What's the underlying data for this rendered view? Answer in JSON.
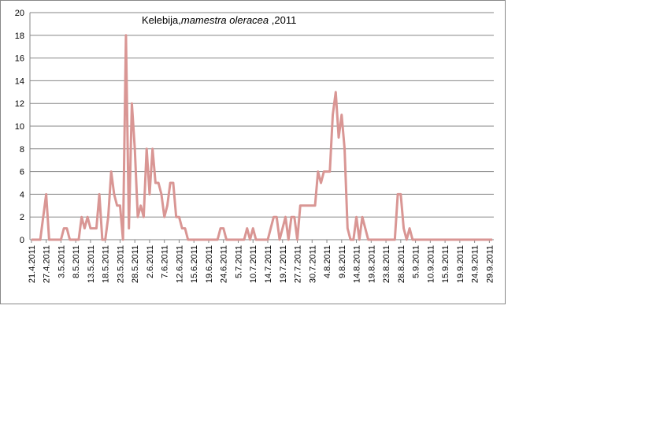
{
  "chart_data": {
    "type": "line",
    "title_parts": [
      "Kelebija,",
      "mamestra oleracea",
      " ,2011"
    ],
    "categories": [
      "21.4.2011",
      null,
      null,
      null,
      null,
      "27.4.2011",
      null,
      null,
      null,
      null,
      "3.5.2011",
      null,
      null,
      null,
      null,
      "8.5.2011",
      null,
      null,
      null,
      null,
      "13.5.2011",
      null,
      null,
      null,
      null,
      "18.5.2011",
      null,
      null,
      null,
      null,
      "23.5.2011",
      null,
      null,
      null,
      null,
      "28.5.2011",
      null,
      null,
      null,
      null,
      "2.6.2011",
      null,
      null,
      null,
      null,
      "7.6.2011",
      null,
      null,
      null,
      null,
      "12.6.2011",
      null,
      null,
      null,
      null,
      "15.6.2011",
      null,
      null,
      null,
      null,
      "19.6.2011",
      null,
      null,
      null,
      null,
      "24.6.2011",
      null,
      null,
      null,
      null,
      "5.7.2011",
      null,
      null,
      null,
      null,
      "10.7.2011",
      null,
      null,
      null,
      null,
      "14.7.2011",
      null,
      null,
      null,
      null,
      "19.7.2011",
      null,
      null,
      null,
      null,
      "27.7.2011",
      null,
      null,
      null,
      null,
      "30.7.2011",
      null,
      null,
      null,
      null,
      "4.8.2011",
      null,
      null,
      null,
      null,
      "9.8.2011",
      null,
      null,
      null,
      null,
      "14.8.2011",
      null,
      null,
      null,
      null,
      "19.8.2011",
      null,
      null,
      null,
      null,
      "23.8.2011",
      null,
      null,
      null,
      null,
      "28.8.2011",
      null,
      null,
      null,
      null,
      "5.9.2011",
      null,
      null,
      null,
      null,
      "10.9.2011",
      null,
      null,
      null,
      null,
      "15.9.2011",
      null,
      null,
      null,
      null,
      "19.9.2011",
      null,
      null,
      null,
      null,
      "24.9.2011",
      null,
      null,
      null,
      null,
      "29.9.2011",
      null
    ],
    "values": [
      0,
      0,
      0,
      0,
      2,
      4,
      0,
      0,
      0,
      0,
      0,
      1,
      1,
      0,
      0,
      0,
      0,
      2,
      1,
      2,
      1,
      1,
      1,
      4,
      0,
      0,
      2,
      6,
      4,
      3,
      3,
      0,
      18,
      1,
      12,
      8,
      2,
      3,
      2,
      8,
      4,
      8,
      5,
      5,
      4,
      2,
      3,
      5,
      5,
      2,
      2,
      1,
      1,
      0,
      0,
      0,
      0,
      0,
      0,
      0,
      0,
      0,
      0,
      0,
      1,
      1,
      0,
      0,
      0,
      0,
      0,
      0,
      0,
      1,
      0,
      1,
      0,
      0,
      0,
      0,
      0,
      1,
      2,
      2,
      0,
      1,
      2,
      0,
      2,
      2,
      0,
      3,
      3,
      3,
      3,
      3,
      3,
      6,
      5,
      6,
      6,
      6,
      11,
      13,
      9,
      11,
      8,
      1,
      0,
      0,
      2,
      0,
      2,
      1,
      0,
      0,
      0,
      0,
      0,
      0,
      0,
      0,
      0,
      0,
      4,
      4,
      1,
      0,
      1,
      0,
      0,
      0,
      0,
      0,
      0,
      0,
      0,
      0,
      0,
      0,
      0,
      0,
      0,
      0,
      0,
      0,
      0,
      0,
      0,
      0,
      0,
      0,
      0,
      0,
      0,
      0,
      0
    ],
    "color": "#d99694",
    "ylim": [
      0,
      20
    ],
    "yticks": [
      0,
      2,
      4,
      6,
      8,
      10,
      12,
      14,
      16,
      18,
      20
    ],
    "grid": true
  }
}
